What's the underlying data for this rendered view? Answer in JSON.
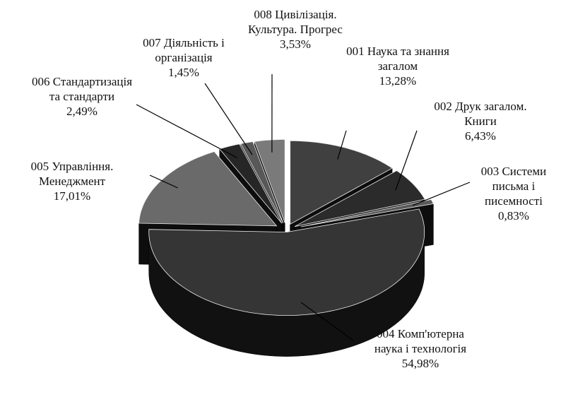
{
  "chart_data": {
    "type": "pie",
    "categories": [
      "001 Наука та знання загалом",
      "002 Друк загалом. Книги",
      "003 Системи письма і писемності",
      "004 Комп'ютерна наука і технологія",
      "005 Управління. Менеджмент",
      "006 Стандартизація та стандарти",
      "007 Діяльність і організація",
      "008 Цивілізація. Культура. Прогрес"
    ],
    "values": [
      13.28,
      6.43,
      0.83,
      54.98,
      17.01,
      2.49,
      1.45,
      3.53
    ],
    "value_labels": [
      "13,28%",
      "6,43%",
      "0,83%",
      "54,98%",
      "17,01%",
      "2,49%",
      "1,45%",
      "3,53%"
    ],
    "colors": [
      "#404040",
      "#2b2b2b",
      "#5a5a5a",
      "#353535",
      "#6a6a6a",
      "#262626",
      "#585858",
      "#7a7a7a"
    ]
  }
}
